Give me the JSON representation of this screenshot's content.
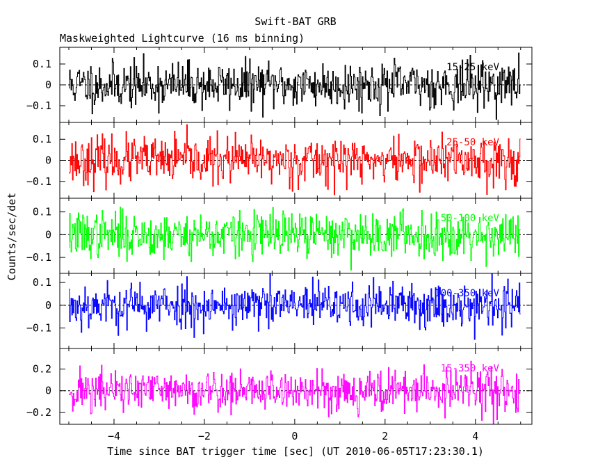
{
  "chart_data": {
    "type": "line",
    "title": "Swift-BAT GRB",
    "subtitle": "Maskweighted Lightcurve (16 ms binning)",
    "xlabel": "Time since BAT trigger time [sec] (UT 2010-06-05T17:23:30.1)",
    "ylabel": "Counts/sec/det",
    "xlim": [
      -5.2,
      5.25
    ],
    "x_ticks": [
      "−4",
      "−2",
      "0",
      "2",
      "4"
    ],
    "x_tick_values": [
      -4,
      -2,
      0,
      2,
      4
    ],
    "bin_size_sec": 0.016,
    "x_start": -5.0,
    "x_end": 5.0,
    "grid": false,
    "panels": [
      {
        "name": "15-25 keV",
        "color": "#000000",
        "ylim": [
          -0.18,
          0.18
        ],
        "tick_values": [
          0.1,
          0,
          -0.1
        ],
        "tick_labels": [
          "0.1",
          "0",
          "−0.1"
        ],
        "noise_sigma": 0.055,
        "seed": 11
      },
      {
        "name": "25-50 keV",
        "color": "#ff0000",
        "ylim": [
          -0.18,
          0.18
        ],
        "tick_values": [
          0.1,
          0,
          -0.1
        ],
        "tick_labels": [
          "0.1",
          "0",
          "−0.1"
        ],
        "noise_sigma": 0.055,
        "seed": 23
      },
      {
        "name": "50-100 keV",
        "color": "#00ff00",
        "ylim": [
          -0.17,
          0.16
        ],
        "tick_values": [
          0.1,
          0,
          -0.1
        ],
        "tick_labels": [
          "0.1",
          "0",
          "−0.1"
        ],
        "noise_sigma": 0.05,
        "seed": 37
      },
      {
        "name": "100-350 keV",
        "color": "#0000ff",
        "ylim": [
          -0.19,
          0.14
        ],
        "tick_values": [
          0.1,
          0,
          -0.1
        ],
        "tick_labels": [
          "0.1",
          "0",
          "−0.1"
        ],
        "noise_sigma": 0.05,
        "seed": 53
      },
      {
        "name": "15-350 keV",
        "color": "#ff00ff",
        "ylim": [
          -0.31,
          0.39
        ],
        "tick_values": [
          0.2,
          0,
          -0.2
        ],
        "tick_labels": [
          "0.2",
          "0",
          "−0.2"
        ],
        "noise_sigma": 0.1,
        "seed": 71
      }
    ]
  }
}
